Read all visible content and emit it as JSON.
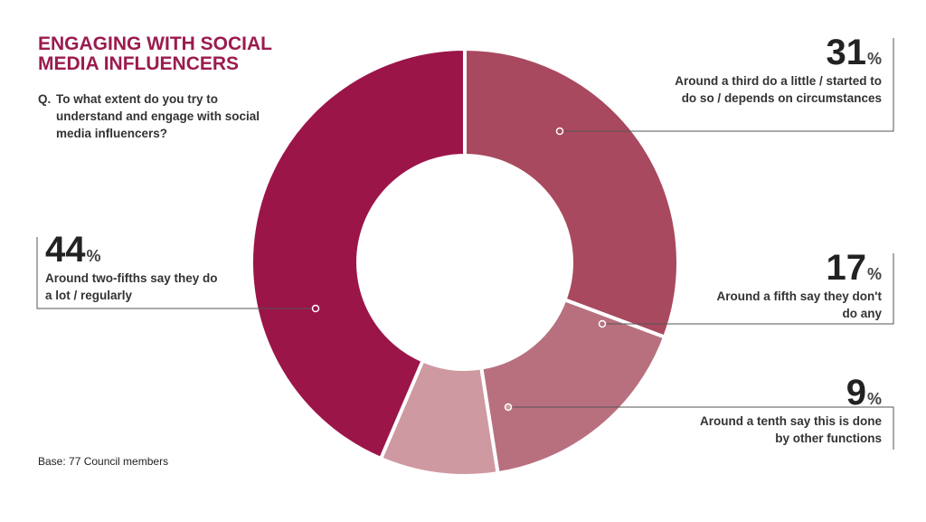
{
  "title": "ENGAGING WITH SOCIAL MEDIA INFLUENCERS",
  "question": {
    "prefix": "Q.",
    "text": "To what extent do you try to understand and engage with social media influencers?"
  },
  "base": "Base: 77 Council members",
  "percent_sign": "%",
  "chart_data": {
    "type": "pie",
    "variant": "donut",
    "unit": "%",
    "start_angle_deg": 0,
    "direction": "clockwise",
    "slices": [
      {
        "label": "31",
        "value": 31,
        "desc": "Around a third do a little / started to do so / depends on circumstances",
        "color": "#a8495f"
      },
      {
        "label": "17",
        "value": 17,
        "desc": "Around a fifth say they don't do any",
        "color": "#b8707f"
      },
      {
        "label": "9",
        "value": 9,
        "desc": "Around a tenth say this is done by other functions",
        "color": "#cf99a1"
      },
      {
        "label": "44",
        "value": 44,
        "desc": "Around two-fifths say they do a lot / regularly",
        "color": "#9b1549"
      }
    ]
  }
}
